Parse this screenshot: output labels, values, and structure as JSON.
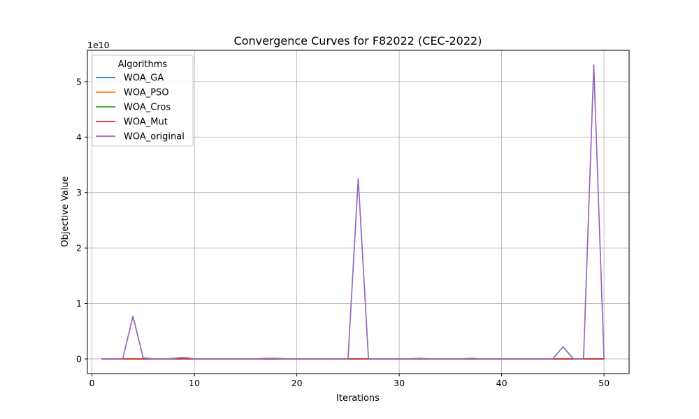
{
  "chart_data": {
    "type": "line",
    "title": "Convergence Curves for F82022 (CEC-2022)",
    "xlabel": "Iterations",
    "ylabel": "Objective Value",
    "y_multiplier_label": "1e10",
    "y_multiplier": 10000000000,
    "xlim": [
      -0.45,
      52.45
    ],
    "ylim": [
      -0.265,
      5.565
    ],
    "xticks": [
      0,
      10,
      20,
      30,
      40,
      50
    ],
    "yticks": [
      0,
      1,
      2,
      3,
      4,
      5
    ],
    "grid": true,
    "legend": {
      "title": "Algorithms",
      "placement": "upper-left"
    },
    "x": [
      1,
      2,
      3,
      4,
      5,
      6,
      7,
      8,
      9,
      10,
      11,
      12,
      13,
      14,
      15,
      16,
      17,
      18,
      19,
      20,
      21,
      22,
      23,
      24,
      25,
      26,
      27,
      28,
      29,
      30,
      31,
      32,
      33,
      34,
      35,
      36,
      37,
      38,
      39,
      40,
      41,
      42,
      43,
      44,
      45,
      46,
      47,
      48,
      49,
      50
    ],
    "series": [
      {
        "name": "WOA_GA",
        "color": "#1f77b4",
        "values": [
          0,
          0,
          0,
          0,
          0,
          0,
          0,
          0,
          0,
          0,
          0,
          0,
          0,
          0,
          0,
          0,
          0,
          0,
          0,
          0,
          0,
          0,
          0,
          0,
          0,
          0,
          0,
          0,
          0,
          0,
          0,
          0,
          0,
          0,
          0,
          0,
          0,
          0,
          0,
          0,
          0,
          0,
          0,
          0,
          0,
          0,
          0,
          0,
          0,
          0
        ]
      },
      {
        "name": "WOA_PSO",
        "color": "#ff7f0e",
        "values": [
          0,
          0,
          0,
          0,
          0,
          0,
          0,
          0,
          0,
          0,
          0,
          0,
          0,
          0,
          0,
          0,
          0,
          0,
          0,
          0,
          0,
          0,
          0,
          0,
          0,
          0,
          0,
          0,
          0,
          0,
          0,
          0,
          0,
          0,
          0,
          0,
          0,
          0,
          0,
          0,
          0,
          0,
          0,
          0,
          0,
          0,
          0,
          0,
          0,
          0
        ]
      },
      {
        "name": "WOA_Cros",
        "color": "#2ca02c",
        "values": [
          0,
          0,
          0,
          0,
          0,
          0,
          0,
          0,
          0,
          0,
          0,
          0,
          0,
          0,
          0,
          0,
          0,
          0,
          0,
          0,
          0,
          0,
          0,
          0,
          0,
          0,
          0,
          0,
          0,
          0,
          0,
          0,
          0,
          0,
          0,
          0,
          0,
          0,
          0,
          0,
          0,
          0,
          0,
          0,
          0,
          0,
          0,
          0,
          0,
          0
        ]
      },
      {
        "name": "WOA_Mut",
        "color": "#d62728",
        "values": [
          0,
          0,
          0,
          0,
          0,
          0,
          0,
          0,
          0,
          0,
          0,
          0,
          0,
          0,
          0,
          0,
          0,
          0,
          0,
          0,
          0,
          0,
          0,
          0,
          0,
          0,
          0,
          0,
          0,
          0,
          0,
          0,
          0,
          0,
          0,
          0,
          0,
          0,
          0,
          0,
          0,
          0,
          0,
          0,
          0,
          0,
          0,
          0,
          0,
          0
        ]
      },
      {
        "name": "WOA_original",
        "color": "#9467bd",
        "values": [
          0,
          0,
          0,
          0.77,
          0.02,
          0,
          0,
          0.01,
          0.03,
          0,
          0,
          0,
          0,
          0,
          0,
          0,
          0.01,
          0.01,
          0,
          0,
          0,
          0,
          0,
          0,
          0,
          3.25,
          0,
          0,
          0,
          0,
          0,
          0.01,
          0,
          0,
          0,
          0,
          0.01,
          0,
          0,
          0,
          0,
          0,
          0,
          0,
          0,
          0.22,
          0,
          0,
          5.3,
          0
        ]
      }
    ]
  }
}
